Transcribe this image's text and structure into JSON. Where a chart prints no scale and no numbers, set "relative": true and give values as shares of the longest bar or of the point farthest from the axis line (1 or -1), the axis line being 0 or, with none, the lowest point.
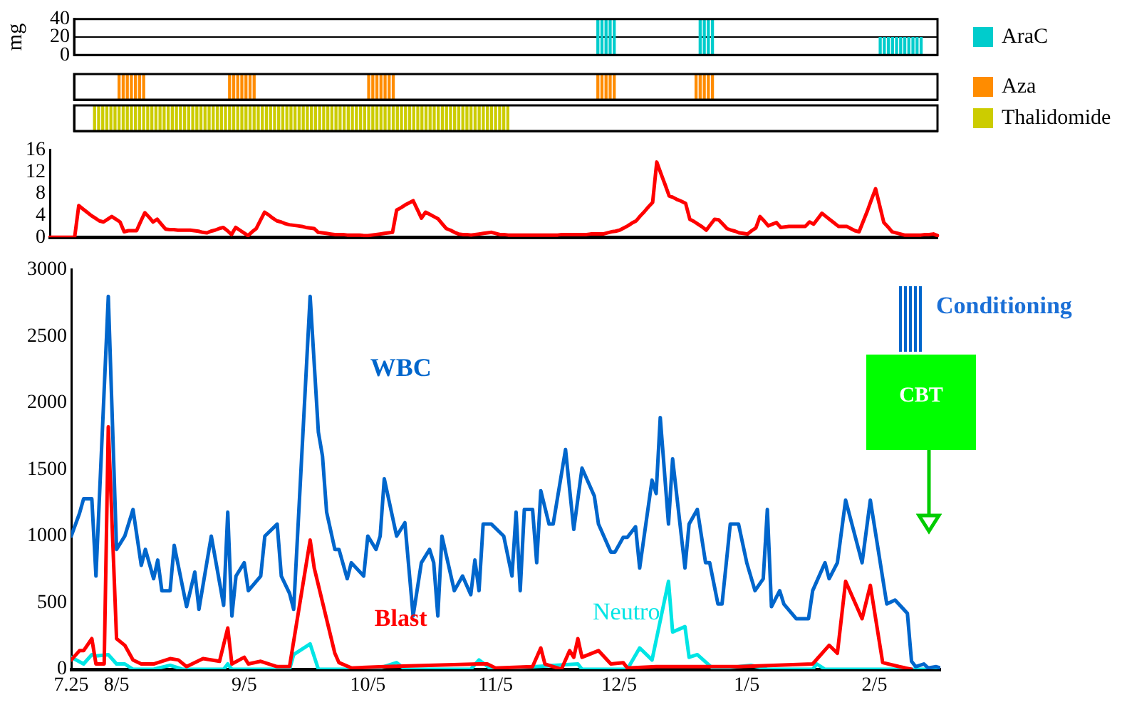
{
  "chart_data": [
    {
      "type": "bar",
      "x": [
        "2000-11-30",
        "2000-12-01",
        "2000-12-02",
        "2000-12-03",
        "2000-12-04",
        "2000-12-25",
        "2000-12-26",
        "2000-12-27",
        "2000-12-28",
        "2001-02-07",
        "2001-02-08",
        "2001-02-09",
        "2001-02-10",
        "2001-02-11",
        "2001-02-12",
        "2001-02-13",
        "2001-02-14",
        "2001-02-15",
        "2001-02-16",
        "2001-02-17"
      ],
      "series": [
        {
          "name": "AraC",
          "color": "#00cccc",
          "values": [
            40,
            40,
            40,
            40,
            40,
            40,
            40,
            40,
            40,
            20,
            20,
            20,
            20,
            20,
            20,
            20,
            20,
            20,
            20,
            20
          ]
        }
      ],
      "xlim": [
        "2000-07-25",
        "2001-02-21"
      ],
      "ylim": [
        0,
        40
      ],
      "yticks": [
        0,
        20,
        40
      ],
      "ylabel": "mg",
      "grid": "y",
      "legend": "right",
      "tick_labels": "y"
    },
    {
      "type": "bar",
      "relative": true,
      "x": [
        "2000-08-05",
        "2000-08-06",
        "2000-08-07",
        "2000-08-08",
        "2000-08-09",
        "2000-08-10",
        "2000-08-11",
        "2000-09-01",
        "2000-09-02",
        "2000-09-03",
        "2000-09-04",
        "2000-09-05",
        "2000-09-06",
        "2000-09-07",
        "2000-10-05",
        "2000-10-06",
        "2000-10-07",
        "2000-10-08",
        "2000-10-09",
        "2000-10-10",
        "2000-10-11",
        "2000-11-30",
        "2000-12-01",
        "2000-12-02",
        "2000-12-03",
        "2000-12-04",
        "2000-12-24",
        "2000-12-25",
        "2000-12-26",
        "2000-12-27",
        "2000-12-28"
      ],
      "series": [
        {
          "name": "Aza",
          "color": "#ff8c00",
          "values": [
            1,
            1,
            1,
            1,
            1,
            1,
            1,
            1,
            1,
            1,
            1,
            1,
            1,
            1,
            1,
            1,
            1,
            1,
            1,
            1,
            1,
            1,
            1,
            1,
            1,
            1,
            1,
            1,
            1,
            1,
            1
          ]
        }
      ],
      "xlim": [
        "2000-07-25",
        "2001-02-21"
      ],
      "legend": "right",
      "tick_labels": false
    },
    {
      "type": "bar",
      "relative": true,
      "x": [
        "2000-07-30",
        "2000-07-31",
        "2000-08-01",
        "2000-08-02",
        "2000-08-03",
        "2000-08-04",
        "2000-08-05",
        "2000-08-06",
        "2000-08-07",
        "2000-08-08",
        "2000-08-09",
        "2000-08-10",
        "2000-08-11",
        "2000-08-12",
        "2000-08-13",
        "2000-08-14",
        "2000-08-15",
        "2000-08-16",
        "2000-08-17",
        "2000-08-18",
        "2000-08-19",
        "2000-08-20",
        "2000-08-21",
        "2000-08-22",
        "2000-08-23",
        "2000-08-24",
        "2000-08-25",
        "2000-08-26",
        "2000-08-27",
        "2000-08-28",
        "2000-08-29",
        "2000-08-30",
        "2000-08-31",
        "2000-09-01",
        "2000-09-02",
        "2000-09-03",
        "2000-09-04",
        "2000-09-05",
        "2000-09-06",
        "2000-09-07",
        "2000-09-08",
        "2000-09-09",
        "2000-09-10",
        "2000-09-11",
        "2000-09-12",
        "2000-09-13",
        "2000-09-14",
        "2000-09-15",
        "2000-09-16",
        "2000-09-17",
        "2000-09-18",
        "2000-09-19",
        "2000-09-20",
        "2000-09-21",
        "2000-09-22",
        "2000-09-23",
        "2000-09-24",
        "2000-09-25",
        "2000-09-26",
        "2000-09-27",
        "2000-09-28",
        "2000-09-29",
        "2000-09-30",
        "2000-10-01",
        "2000-10-02",
        "2000-10-03",
        "2000-10-04",
        "2000-10-05",
        "2000-10-06",
        "2000-10-07",
        "2000-10-08",
        "2000-10-09",
        "2000-10-10",
        "2000-10-11",
        "2000-10-12",
        "2000-10-13",
        "2000-10-14",
        "2000-10-15",
        "2000-10-16",
        "2000-10-17",
        "2000-10-18",
        "2000-10-19",
        "2000-10-20",
        "2000-10-21",
        "2000-10-22",
        "2000-10-23",
        "2000-10-24",
        "2000-10-25",
        "2000-10-26",
        "2000-10-27",
        "2000-10-28",
        "2000-10-29",
        "2000-10-30",
        "2000-10-31",
        "2000-11-01",
        "2000-11-02",
        "2000-11-03",
        "2000-11-04",
        "2000-11-05",
        "2000-11-06",
        "2000-11-07",
        "2000-11-08"
      ],
      "series": [
        {
          "name": "Thalidomide",
          "color": "#cccc00",
          "values": [
            1,
            1,
            1,
            1,
            1,
            1,
            1,
            1,
            1,
            1,
            1,
            1,
            1,
            1,
            1,
            1,
            1,
            1,
            1,
            1,
            1,
            1,
            1,
            1,
            1,
            1,
            1,
            1,
            1,
            1,
            1,
            1,
            1,
            1,
            1,
            1,
            1,
            1,
            1,
            1,
            1,
            1,
            1,
            1,
            1,
            1,
            1,
            1,
            1,
            1,
            1,
            1,
            1,
            1,
            1,
            1,
            1,
            1,
            1,
            1,
            1,
            1,
            1,
            1,
            1,
            1,
            1,
            1,
            1,
            1,
            1,
            1,
            1,
            1,
            1,
            1,
            1,
            1,
            1,
            1,
            1,
            1,
            1,
            1,
            1,
            1,
            1,
            1,
            1,
            1,
            1,
            1,
            1,
            1,
            1,
            1,
            1,
            1,
            1,
            1,
            1,
            1
          ]
        }
      ],
      "xlim": [
        "2000-07-25",
        "2001-02-21"
      ],
      "legend": "right",
      "tick_labels": false
    },
    {
      "type": "line",
      "categories": [
        null,
        null,
        null,
        null,
        null,
        null,
        null,
        null,
        null,
        null,
        null,
        null,
        null,
        null,
        null,
        null,
        null,
        null,
        null,
        null,
        null,
        null,
        null,
        null,
        null,
        null,
        null,
        null,
        null,
        null,
        null,
        null,
        null,
        null,
        null,
        null,
        null,
        null,
        null,
        null,
        null,
        null,
        null,
        null,
        null,
        null,
        null,
        null,
        null,
        null,
        null,
        null,
        null,
        null,
        null,
        null,
        null,
        null,
        null,
        null,
        null,
        null,
        null,
        null,
        null,
        null,
        null,
        null,
        null,
        null,
        null,
        null,
        null,
        null,
        null,
        null,
        null,
        null,
        null,
        null,
        null,
        null,
        null,
        null,
        null,
        null,
        null,
        null,
        null,
        null,
        null,
        null,
        null,
        null,
        null,
        null,
        null,
        null,
        null,
        null,
        null,
        null,
        null,
        null,
        null,
        null,
        null,
        null,
        null,
        null,
        null,
        null,
        null,
        null,
        null,
        null,
        null,
        null,
        null,
        null,
        null,
        null,
        null,
        null,
        null,
        null,
        null,
        null,
        null,
        null,
        null,
        null,
        null,
        null,
        null,
        null,
        null,
        null,
        null,
        null,
        null,
        null,
        null,
        null,
        null,
        null,
        null,
        null,
        null,
        null,
        null,
        null,
        null,
        null,
        null,
        null,
        null,
        null,
        null,
        null,
        null,
        null,
        null,
        null,
        null,
        null,
        null,
        null,
        null,
        null,
        null,
        null,
        null,
        null,
        null,
        null,
        null,
        null,
        null,
        null,
        null,
        null,
        null,
        null,
        null,
        null,
        null,
        null,
        null,
        null,
        null,
        null,
        null,
        null,
        null,
        null,
        null,
        null,
        null,
        null,
        null,
        null,
        null,
        null,
        null,
        null,
        null,
        null,
        null,
        null,
        null,
        null,
        null,
        null,
        null,
        null
      ],
      "series": [
        {
          "color": "#ff0000",
          "values": [
            0,
            0,
            0,
            0,
            0,
            0,
            0,
            5.8,
            5.2,
            4.6,
            4,
            3.5,
            3,
            2.8,
            3.3,
            3.8,
            3.3,
            2.8,
            1,
            1.2,
            1.2,
            1.2,
            2.9,
            4.5,
            3.7,
            2.8,
            3.3,
            2.4,
            1.5,
            1.4,
            1.4,
            1.3,
            1.3,
            1.3,
            1.3,
            1.2,
            1.1,
            0.9,
            0.8,
            1.1,
            1.3,
            1.6,
            1.8,
            1.2,
            0.5,
            1.8,
            1.3,
            0.8,
            0.3,
            1,
            1.6,
            3.1,
            4.6,
            4.1,
            3.5,
            3,
            2.8,
            2.5,
            2.3,
            2.2,
            2.1,
            2,
            1.8,
            1.7,
            1.6,
            0.9,
            0.8,
            0.7,
            0.6,
            0.5,
            0.5,
            0.5,
            0.4,
            0.4,
            0.4,
            0.4,
            0.3,
            0.3,
            0.4,
            0.5,
            0.6,
            0.7,
            0.8,
            0.9,
            5,
            5.4,
            5.9,
            6.3,
            6.7,
            5.1,
            3.5,
            4.6,
            4.2,
            3.8,
            3.4,
            2.5,
            1.6,
            1.3,
            0.9,
            0.6,
            0.5,
            0.5,
            0.4,
            0.5,
            0.6,
            0.7,
            0.8,
            0.9,
            0.7,
            0.5,
            0.5,
            0.4,
            0.4,
            0.4,
            0.4,
            0.4,
            0.4,
            0.4,
            0.4,
            0.4,
            0.4,
            0.4,
            0.4,
            0.4,
            0.5,
            0.5,
            0.5,
            0.5,
            0.5,
            0.5,
            0.5,
            0.6,
            0.6,
            0.6,
            0.6,
            0.8,
            1,
            1.1,
            1.3,
            1.7,
            2.1,
            2.6,
            3,
            3.9,
            4.7,
            5.6,
            6.4,
            13.8,
            11.7,
            9.7,
            7.6,
            7.3,
            6.9,
            6.6,
            6.2,
            3.3,
            2.9,
            2.4,
            1.9,
            1.3,
            2.3,
            3.3,
            3.2,
            2.4,
            1.6,
            1.3,
            1.1,
            0.8,
            0.7,
            0.6,
            1.2,
            1.7,
            3.8,
            3,
            2.1,
            2.4,
            2.7,
            1.8,
            1.9,
            2,
            2,
            2,
            2,
            2,
            2.8,
            2.4,
            3.4,
            4.4,
            3.8,
            3.2,
            2.6,
            2,
            2,
            2,
            1.6,
            1.2,
            1,
            2.9,
            4.8,
            6.9,
            8.9,
            5.8,
            2.7,
            1.9,
            1,
            0.8,
            0.6,
            0.4,
            0.4,
            0.4,
            0.4,
            0.4,
            0.5,
            0.5,
            0.6,
            0.3
          ]
        }
      ],
      "ylim": [
        0,
        16
      ],
      "yticks": [
        0,
        4,
        8,
        12,
        16
      ],
      "tick_labels": "y"
    },
    {
      "type": "line",
      "series": [
        {
          "name": "WBC",
          "color": "#0066cc",
          "x": [
            "2000-07-25",
            "2000-07-27",
            "2000-07-28",
            "2000-07-30",
            "2000-07-31",
            "2000-08-03",
            "2000-08-05",
            "2000-08-07",
            "2000-08-09",
            "2000-08-11",
            "2000-08-12",
            "2000-08-14",
            "2000-08-15",
            "2000-08-16",
            "2000-08-18",
            "2000-08-19",
            "2000-08-22",
            "2000-08-24",
            "2000-08-25",
            "2000-08-28",
            "2000-08-31",
            "2000-09-01",
            "2000-09-02",
            "2000-09-03",
            "2000-09-05",
            "2000-09-06",
            "2000-09-09",
            "2000-09-10",
            "2000-09-13",
            "2000-09-14",
            "2000-09-16",
            "2000-09-17",
            "2000-09-21",
            "2000-09-23",
            "2000-09-24",
            "2000-09-25",
            "2000-09-27",
            "2000-09-28",
            "2000-09-30",
            "2000-10-01",
            "2000-10-04",
            "2000-10-05",
            "2000-10-07",
            "2000-10-08",
            "2000-10-09",
            "2000-10-12",
            "2000-10-14",
            "2000-10-16",
            "2000-10-18",
            "2000-10-20",
            "2000-10-21",
            "2000-10-22",
            "2000-10-23",
            "2000-10-26",
            "2000-10-28",
            "2000-10-30",
            "2000-10-31",
            "2000-11-01",
            "2000-11-02",
            "2000-11-04",
            "2000-11-07",
            "2000-11-09",
            "2000-11-10",
            "2000-11-11",
            "2000-11-12",
            "2000-11-14",
            "2000-11-15",
            "2000-11-16",
            "2000-11-18",
            "2000-11-19",
            "2000-11-22",
            "2000-11-24",
            "2000-11-26",
            "2000-11-29",
            "2000-11-30",
            "2000-12-03",
            "2000-12-04",
            "2000-12-06",
            "2000-12-07",
            "2000-12-09",
            "2000-12-10",
            "2000-12-13",
            "2000-12-14",
            "2000-12-15",
            "2000-12-17",
            "2000-12-18",
            "2000-12-21",
            "2000-12-22",
            "2000-12-24",
            "2000-12-26",
            "2000-12-27",
            "2000-12-29",
            "2000-12-30",
            "2001-01-01",
            "2001-01-03",
            "2001-01-05",
            "2001-01-07",
            "2001-01-09",
            "2001-01-10",
            "2001-01-11",
            "2001-01-13",
            "2001-01-14",
            "2001-01-17",
            "2001-01-20",
            "2001-01-21",
            "2001-01-24",
            "2001-01-25",
            "2001-01-27",
            "2001-01-29",
            "2001-02-02",
            "2001-02-04",
            "2001-02-08",
            "2001-02-10",
            "2001-02-13",
            "2001-02-14",
            "2001-02-15",
            "2001-02-17",
            "2001-02-18",
            "2001-02-20",
            "2001-02-21"
          ],
          "values": [
            1000,
            1170,
            1280,
            1280,
            700,
            2800,
            900,
            1000,
            1200,
            780,
            900,
            680,
            820,
            590,
            590,
            930,
            470,
            730,
            450,
            1000,
            480,
            1180,
            400,
            700,
            800,
            590,
            700,
            1000,
            1090,
            700,
            570,
            450,
            2800,
            1780,
            1600,
            1180,
            900,
            900,
            680,
            800,
            700,
            1000,
            900,
            1000,
            1430,
            1000,
            1100,
            400,
            800,
            900,
            800,
            400,
            1000,
            590,
            700,
            560,
            820,
            590,
            1090,
            1090,
            1000,
            700,
            1180,
            590,
            1200,
            1200,
            800,
            1340,
            1090,
            1090,
            1650,
            1050,
            1510,
            1300,
            1090,
            880,
            880,
            990,
            990,
            1070,
            760,
            1420,
            1320,
            1890,
            1090,
            1580,
            760,
            1090,
            1200,
            800,
            800,
            490,
            490,
            1090,
            1090,
            800,
            590,
            680,
            1200,
            470,
            590,
            490,
            380,
            380,
            590,
            800,
            680,
            800,
            1270,
            800,
            1270,
            490,
            520,
            420,
            60,
            20,
            40,
            10,
            20,
            10
          ]
        },
        {
          "name": "Blast",
          "color": "#ff0000",
          "x": [
            "2000-07-25",
            "2000-07-27",
            "2000-07-28",
            "2000-07-30",
            "2000-07-31",
            "2000-08-02",
            "2000-08-03",
            "2000-08-05",
            "2000-08-07",
            "2000-08-09",
            "2000-08-11",
            "2000-08-14",
            "2000-08-18",
            "2000-08-20",
            "2000-08-22",
            "2000-08-26",
            "2000-08-30",
            "2000-09-01",
            "2000-09-02",
            "2000-09-05",
            "2000-09-06",
            "2000-09-09",
            "2000-09-13",
            "2000-09-16",
            "2000-09-21",
            "2000-09-22",
            "2000-09-27",
            "2000-09-28",
            "2000-10-01",
            "2000-10-09",
            "2000-11-01",
            "2000-11-03",
            "2000-11-05",
            "2000-11-14",
            "2000-11-16",
            "2000-11-17",
            "2000-11-21",
            "2000-11-23",
            "2000-11-24",
            "2000-11-25",
            "2000-11-26",
            "2000-11-30",
            "2000-12-03",
            "2000-12-06",
            "2000-12-07",
            "2000-12-14",
            "2000-12-22",
            "2001-01-03",
            "2001-01-21",
            "2001-01-25",
            "2001-01-27",
            "2001-01-29",
            "2001-02-02",
            "2001-02-04",
            "2001-02-07",
            "2001-02-11",
            "2001-02-14"
          ],
          "values": [
            70,
            140,
            140,
            230,
            40,
            40,
            1820,
            230,
            180,
            70,
            40,
            40,
            80,
            70,
            20,
            80,
            60,
            310,
            40,
            90,
            40,
            60,
            20,
            20,
            970,
            760,
            120,
            50,
            10,
            20,
            40,
            40,
            10,
            20,
            160,
            40,
            0,
            140,
            90,
            230,
            90,
            140,
            40,
            50,
            10,
            20,
            20,
            20,
            40,
            180,
            120,
            660,
            380,
            630,
            50,
            20,
            0
          ]
        },
        {
          "name": "Neutro",
          "color": "#00e5e5",
          "x": [
            "2000-07-25",
            "2000-07-28",
            "2000-07-30",
            "2000-07-31",
            "2000-08-03",
            "2000-08-05",
            "2000-08-07",
            "2000-08-09",
            "2000-08-14",
            "2000-08-18",
            "2000-08-21",
            "2000-08-31",
            "2000-09-01",
            "2000-09-02",
            "2000-09-16",
            "2000-09-17",
            "2000-09-21",
            "2000-09-23",
            "2000-10-07",
            "2000-10-12",
            "2000-10-14",
            "2000-10-30",
            "2000-11-01",
            "2000-11-04",
            "2000-11-25",
            "2000-11-26",
            "2000-12-07",
            "2000-12-10",
            "2000-12-13",
            "2000-12-17",
            "2000-12-18",
            "2000-12-21",
            "2000-12-22",
            "2000-12-24",
            "2000-12-28",
            "2001-01-06",
            "2001-01-10",
            "2001-01-21",
            "2001-01-22",
            "2001-01-24",
            "2001-02-21"
          ],
          "values": [
            90,
            40,
            110,
            100,
            110,
            40,
            40,
            0,
            0,
            30,
            0,
            0,
            40,
            0,
            0,
            110,
            190,
            0,
            0,
            50,
            0,
            0,
            70,
            0,
            40,
            0,
            0,
            160,
            70,
            660,
            280,
            320,
            90,
            110,
            0,
            30,
            0,
            0,
            40,
            0,
            0
          ]
        }
      ],
      "xlim": [
        "2000-07-25",
        "2001-02-21"
      ],
      "xticks": [
        {
          "value": "2000-07-25",
          "label": "7.25"
        },
        {
          "value": "2000-08-05",
          "label": "8/5"
        },
        {
          "value": "2000-09-05",
          "label": "9/5"
        },
        {
          "value": "2000-10-05",
          "label": "10/5"
        },
        {
          "value": "2000-11-05",
          "label": "11/5"
        },
        {
          "value": "2000-12-05",
          "label": "12/5"
        },
        {
          "value": "2001-01-05",
          "label": "1/5"
        },
        {
          "value": "2001-02-05",
          "label": "2/5"
        }
      ],
      "ylim": [
        0,
        3000
      ],
      "yticks": [
        0,
        500,
        1000,
        1500,
        2000,
        2500,
        3000
      ],
      "annotations": [
        "Conditioning",
        "CBT"
      ]
    }
  ]
}
